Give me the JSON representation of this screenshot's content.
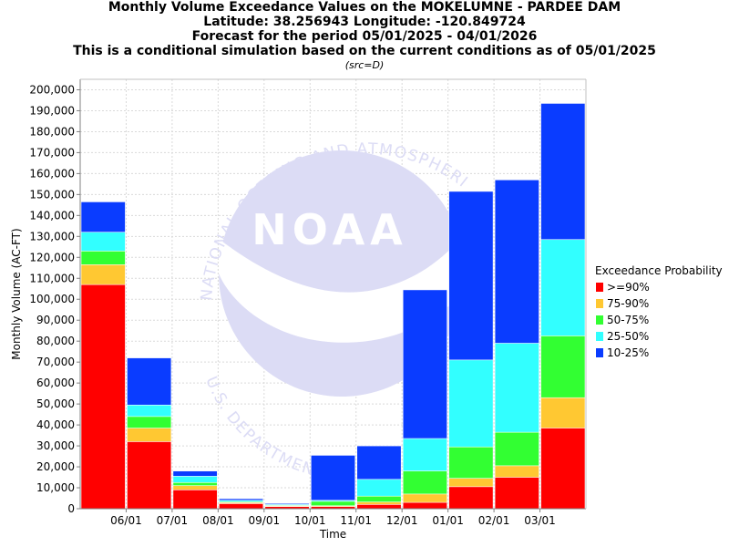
{
  "titles": {
    "line1": "Monthly Volume Exceedance Values on the MOKELUMNE - PARDEE DAM",
    "line2": "Latitude: 38.256943 Longitude: -120.849724",
    "line3": "Forecast for the period 05/01/2025 - 04/01/2026",
    "line4": "This is a conditional simulation based on the current conditions as of 05/01/2025",
    "source": "(src=D)"
  },
  "watermark": {
    "logo_text": "NOAA",
    "top_arc": "NATIONAL OCEANIC AND ATMOSPHERIC ADMINISTRATION",
    "bottom_arc": "U.S. DEPARTMENT OF COMMERCE"
  },
  "colors": {
    "p90": "#ff0000",
    "p75": "#ffc832",
    "p50": "#32ff32",
    "p25": "#32ffff",
    "p10": "#0a3cff",
    "grid": "#d9d9d9",
    "watermark": "#dcdcf5"
  },
  "chart_data": {
    "type": "bar",
    "stacked": true,
    "xlabel": "Time",
    "ylabel": "Monthly Volume (AC-FT)",
    "ylim": [
      0,
      205000
    ],
    "yticks": [
      0,
      10000,
      20000,
      30000,
      40000,
      50000,
      60000,
      70000,
      80000,
      90000,
      100000,
      110000,
      120000,
      130000,
      140000,
      150000,
      160000,
      170000,
      180000,
      190000,
      200000
    ],
    "ytick_labels": [
      "0",
      "10,000",
      "20,000",
      "30,000",
      "40,000",
      "50,000",
      "60,000",
      "70,000",
      "80,000",
      "90,000",
      "100,000",
      "110,000",
      "120,000",
      "130,000",
      "140,000",
      "150,000",
      "160,000",
      "170,000",
      "180,000",
      "190,000",
      "200,000"
    ],
    "xtick_labels": [
      "06/01",
      "07/01",
      "08/01",
      "09/01",
      "10/01",
      "11/01",
      "12/01",
      "01/01",
      "02/01",
      "03/01"
    ],
    "grid": true,
    "legend_title": "Exceedance Probability",
    "legend_placement": "right",
    "series": [
      {
        "name": ">=90%",
        "color_key": "p90",
        "cumulative": [
          107000,
          32000,
          9000,
          2400,
          1000,
          1000,
          2000,
          3000,
          10500,
          15000,
          38500
        ]
      },
      {
        "name": "75-90%",
        "color_key": "p75",
        "cumulative": [
          116500,
          38500,
          11000,
          2900,
          1300,
          1400,
          3200,
          7000,
          14500,
          20500,
          53000
        ]
      },
      {
        "name": "50-75%",
        "color_key": "p50",
        "cumulative": [
          123000,
          44000,
          12500,
          3300,
          1600,
          3500,
          6000,
          18000,
          29500,
          36500,
          82500
        ]
      },
      {
        "name": "25-50%",
        "color_key": "p25",
        "cumulative": [
          132000,
          49500,
          15500,
          4000,
          2000,
          4000,
          14000,
          33500,
          71000,
          79000,
          128500
        ]
      },
      {
        "name": "10-25%",
        "color_key": "p10",
        "cumulative": [
          146500,
          72000,
          18000,
          4800,
          2500,
          25500,
          30000,
          104500,
          151500,
          157000,
          193500
        ]
      }
    ]
  }
}
